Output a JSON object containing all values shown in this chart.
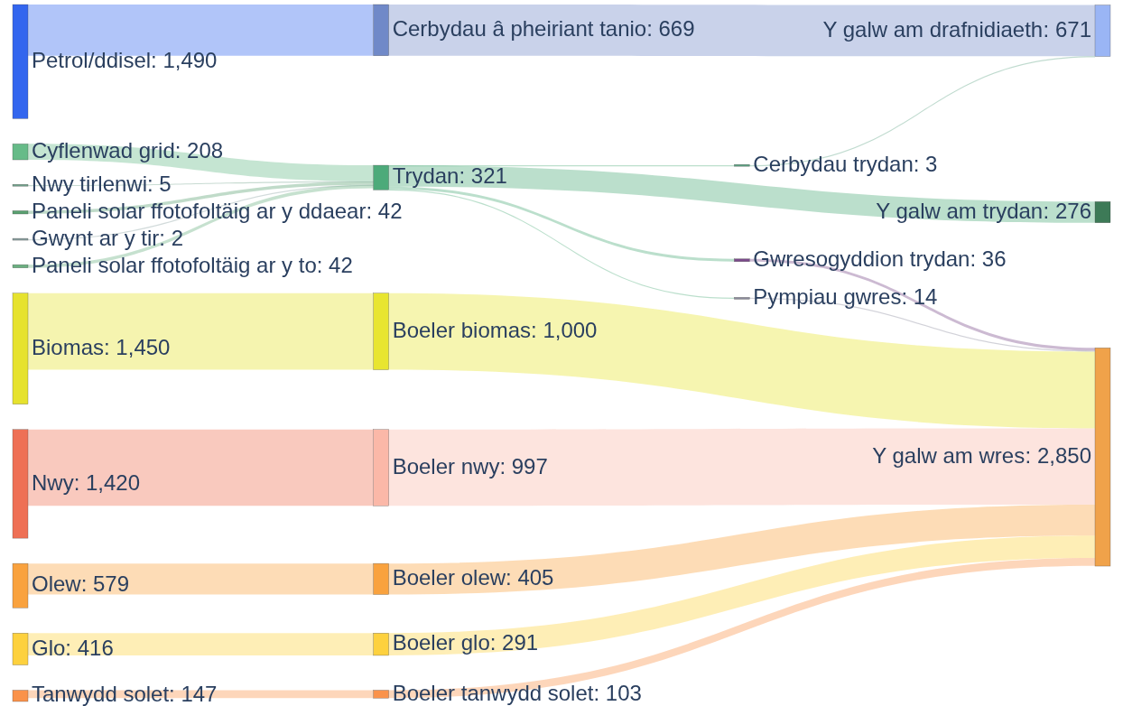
{
  "chart_data": {
    "type": "other",
    "categories": [
      "Petrol/ddisel",
      "Cyflenwad grid",
      "Nwy tirlenwi",
      "Paneli solar ffotofoltäig ar y ddaear",
      "Gwynt ar y tir",
      "Paneli solar ffotofoltäig ar y to",
      "Biomas",
      "Nwy",
      "Olew",
      "Glo",
      "Tanwydd solet",
      "Cerbydau â pheiriant tanio",
      "Trydan",
      "Boeler biomas",
      "Boeler nwy",
      "Boeler olew",
      "Boeler glo",
      "Boeler tanwydd solet",
      "Cerbydau trydan",
      "Gwresogyddion trydan",
      "Pympiau gwres",
      "Y galw am drafnidiaeth",
      "Y galw am trydan",
      "Y galw am wres"
    ],
    "values": [
      1490,
      208,
      5,
      42,
      2,
      42,
      1450,
      1420,
      579,
      416,
      147,
      669,
      321,
      1000,
      997,
      405,
      291,
      103,
      3,
      36,
      14,
      671,
      276,
      2850
    ],
    "value_labels": [
      ": 1,490",
      ": 208",
      ": 5",
      ": 42",
      ": 2",
      ": 42",
      ": 1,450",
      ": 1,420",
      ": 579",
      ": 416",
      ": 147",
      ": 669",
      ": 321",
      ": 1,000",
      ": 997",
      ": 405",
      ": 291",
      ": 103",
      ": 3",
      ": 36",
      ": 14",
      ": 671",
      ": 276",
      ": 2,850"
    ],
    "colors": [
      "#3366ee",
      "#66bb88",
      "#6fa08a",
      "#5aa070",
      "#8aa0a0",
      "#6ab080",
      "#e6e22e",
      "#ee7055",
      "#f9a23e",
      "#fdd13e",
      "#fa924a",
      "#7089c8",
      "#4daa7a",
      "#e8e530",
      "#fbb8a8",
      "#f9a23e",
      "#fdd13e",
      "#fa924a",
      "#5aa080",
      "#7a4a8a",
      "#8a8a9a",
      "#9ab5f5",
      "#3d7a57",
      "#f0a24a"
    ]
  }
}
